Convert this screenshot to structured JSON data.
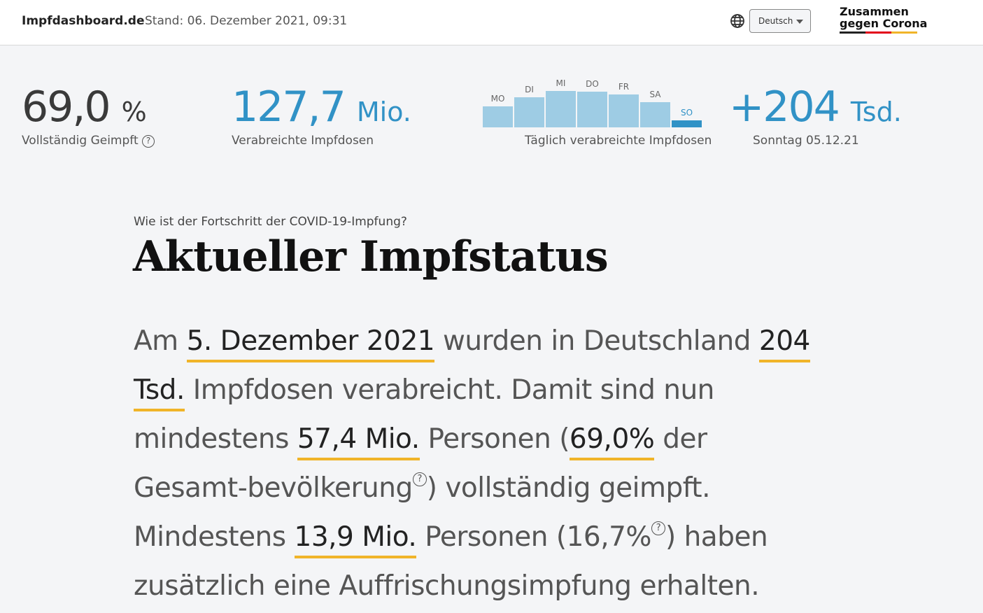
{
  "header": {
    "brand": "Impfdashboard.de",
    "stand": "Stand: 06. Dezember 2021, 09:31",
    "language": "Deutsch",
    "logo_line1": "Zusammen",
    "logo_line2": "gegen Corona",
    "flag_colors": [
      "#222222",
      "#e2001a",
      "#f0b429"
    ]
  },
  "kpis": {
    "vollstaendig": {
      "value": "69,0",
      "unit": "%",
      "label": "Vollständig Geimpft",
      "help": "?"
    },
    "dosen": {
      "value": "127,7",
      "unit": "Mio.",
      "label": "Verabreichte Impfdosen"
    },
    "taeglich": {
      "label": "Täglich verabreichte Impfdosen",
      "days": [
        "MO",
        "DI",
        "MI",
        "DO",
        "FR",
        "SA",
        "SO"
      ],
      "relative_levels": [
        0.58,
        0.83,
        1.0,
        0.98,
        0.9,
        0.69,
        0.19
      ],
      "bar_color": "#9ecce4",
      "highlight_color": "#3192c6"
    },
    "gestern": {
      "value": "+204",
      "unit": "Tsd.",
      "label": "Sonntag 05.12.21"
    }
  },
  "accent": "#3192c6",
  "section": {
    "kicker": "Wie ist der Fortschritt der COVID-19-Impfung?",
    "title": "Aktueller Impfstatus",
    "p": {
      "t1": "Am ",
      "h1": "5. Dezember 2021",
      "t2": " wurden in Deutschland ",
      "h2": "204 Tsd.",
      "t3": " Impfdosen verabreicht. Damit sind nun mindestens ",
      "h3": "57,4 Mio.",
      "t4": " Personen (",
      "h4": "69,0%",
      "t5": " der Gesamt-bevölkerung",
      "q": "?",
      "t6": ") vollständig geimpft. Mindestens ",
      "h5": "13,9 Mio.",
      "t7": " Personen (16,7%",
      "t8": ") haben zusätzlich eine Auffrischungsimpfung erhalten."
    }
  }
}
